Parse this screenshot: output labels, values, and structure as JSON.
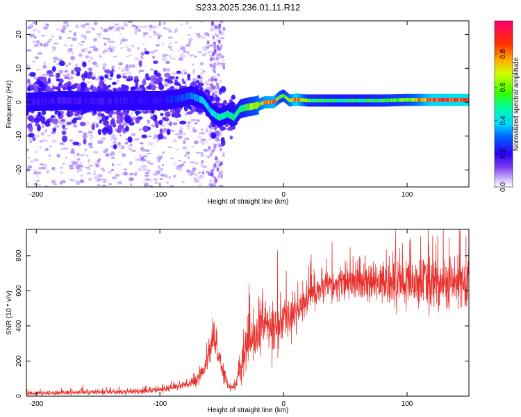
{
  "title": "S233.2025.236.01.11.R12",
  "chart_data": [
    {
      "type": "heatmap",
      "title": "S233.2025.236.01.11.R12",
      "xlabel": "Height of straight line (km)",
      "ylabel": "Frequency (Hz)",
      "xlim": [
        -208,
        150
      ],
      "ylim": [
        -25,
        24
      ],
      "x_ticks": [
        -200,
        -100,
        0,
        100
      ],
      "y_ticks": [
        -20,
        -10,
        0,
        10,
        20
      ],
      "grid": false,
      "colorbar": {
        "label": "Normalized spectral amplitude",
        "range": [
          0,
          1
        ],
        "ticks": [
          "0.0",
          "0.2",
          "0.4",
          "0.6",
          "0.8"
        ],
        "tick_values": [
          0.0,
          0.2,
          0.4,
          0.6,
          0.8
        ],
        "colors": [
          "#ffffff",
          "#a27cff",
          "#5a00d8",
          "#0000ff",
          "#00c8ff",
          "#00ff90",
          "#40ff00",
          "#ffff00",
          "#ff8000",
          "#ff0000",
          "#ff0060"
        ]
      },
      "ridge": {
        "description_x": [
          -208,
          -180,
          -150,
          -120,
          -100,
          -85,
          -75,
          -65,
          -58,
          -52,
          -45,
          -40,
          -35,
          -30,
          -22,
          -15,
          -8,
          -3,
          0,
          5,
          10,
          20,
          40,
          60,
          80,
          100,
          120,
          150
        ],
        "frequency": [
          0.0,
          0.5,
          0.3,
          0.5,
          0.5,
          1.0,
          2.0,
          0.5,
          -3.0,
          -4.5,
          -3.5,
          -4.5,
          -2.0,
          -1.5,
          -1.0,
          0.0,
          0.0,
          1.5,
          2.0,
          0.5,
          0.8,
          0.5,
          0.5,
          0.5,
          0.5,
          0.7,
          0.7,
          0.7
        ],
        "amplitude": [
          0.18,
          0.18,
          0.18,
          0.2,
          0.2,
          0.25,
          0.3,
          0.38,
          0.4,
          0.45,
          0.45,
          0.5,
          0.5,
          0.55,
          0.65,
          0.75,
          0.8,
          0.6,
          0.55,
          0.7,
          0.85,
          0.55,
          0.5,
          0.5,
          0.55,
          0.6,
          0.85,
          0.9
        ]
      }
    },
    {
      "type": "line",
      "xlabel": "Height of straight line (km)",
      "ylabel": "SNR (10 * v/v)",
      "xlim": [
        -208,
        150
      ],
      "ylim": [
        0,
        950
      ],
      "x_ticks": [
        -200,
        -100,
        0,
        100
      ],
      "y_ticks": [
        0,
        200,
        400,
        600,
        800
      ],
      "grid": false,
      "series": [
        {
          "color": "#e8322e",
          "x": [
            -208,
            -190,
            -170,
            -150,
            -130,
            -110,
            -95,
            -85,
            -75,
            -70,
            -65,
            -60,
            -57,
            -55,
            -52,
            -48,
            -45,
            -40,
            -37,
            -35,
            -32,
            -28,
            -25,
            -20,
            -15,
            -10,
            -5,
            0,
            5,
            10,
            15,
            20,
            25,
            30,
            40,
            50,
            60,
            70,
            80,
            90,
            100,
            110,
            120,
            130,
            140,
            150
          ],
          "y": [
            15,
            18,
            20,
            22,
            25,
            30,
            40,
            55,
            70,
            100,
            150,
            230,
            330,
            300,
            200,
            120,
            60,
            50,
            110,
            150,
            220,
            310,
            330,
            360,
            420,
            380,
            400,
            420,
            440,
            480,
            520,
            570,
            600,
            610,
            630,
            640,
            640,
            630,
            650,
            640,
            640,
            650,
            650,
            640,
            640,
            630
          ],
          "noise": [
            10,
            10,
            10,
            12,
            12,
            12,
            15,
            20,
            25,
            30,
            35,
            60,
            60,
            60,
            50,
            35,
            25,
            20,
            50,
            70,
            90,
            110,
            120,
            120,
            120,
            120,
            120,
            120,
            100,
            90,
            90,
            80,
            80,
            75,
            75,
            75,
            80,
            85,
            100,
            110,
            120,
            120,
            130,
            130,
            130,
            130
          ]
        }
      ]
    }
  ]
}
